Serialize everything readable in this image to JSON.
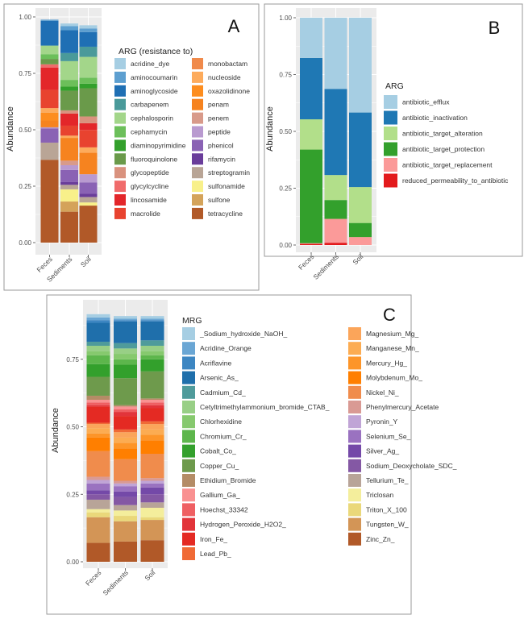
{
  "chart_data": [
    {
      "panel": "A",
      "type": "bar",
      "stacked": true,
      "ylabel": "Abundance",
      "ylim": [
        0,
        1
      ],
      "yticks": [
        "0.00",
        "0.25",
        "0.50",
        "0.75",
        "1.00"
      ],
      "categories": [
        "Feces",
        "Sediments",
        "Soil"
      ],
      "legend_title": "ARG (resistance to)",
      "legend_position": "right",
      "grid": true,
      "series": [
        {
          "name": "acridine_dye",
          "color": "#a6cee3",
          "values": [
            0,
            0.012,
            0.014
          ]
        },
        {
          "name": "aminocoumarin",
          "color": "#5d9fd0",
          "values": [
            0.005,
            0.018,
            0.016
          ]
        },
        {
          "name": "aminoglycoside",
          "color": "#1f6fb4",
          "values": [
            0.11,
            0.101,
            0.065
          ]
        },
        {
          "name": "carbapenem",
          "color": "#4a9a9a",
          "values": [
            0,
            0.036,
            0.045
          ]
        },
        {
          "name": "cephalosporin",
          "color": "#a3d68a",
          "values": [
            0.038,
            0.083,
            0.092
          ]
        },
        {
          "name": "cephamycin",
          "color": "#6cbf5a",
          "values": [
            0.021,
            0.03,
            0.027
          ]
        },
        {
          "name": "diaminopyrimidine",
          "color": "#33a02c",
          "values": [
            0,
            0.018,
            0.02
          ]
        },
        {
          "name": "fluoroquinolone",
          "color": "#6a9a4a",
          "values": [
            0.024,
            0.087,
            0.125
          ]
        },
        {
          "name": "glycopeptide",
          "color": "#d9927e",
          "values": [
            0,
            0.014,
            0.03
          ]
        },
        {
          "name": "glycylcycline",
          "color": "#f06b6b",
          "values": [
            0.014,
            0,
            0
          ]
        },
        {
          "name": "lincosamide",
          "color": "#e3262a",
          "values": [
            0.099,
            0.054,
            0.03
          ]
        },
        {
          "name": "macrolide",
          "color": "#e8432f",
          "values": [
            0.081,
            0.044,
            0.077
          ]
        },
        {
          "name": "monobactam",
          "color": "#f08a4b",
          "values": [
            0,
            0,
            0
          ]
        },
        {
          "name": "nucleoside",
          "color": "#fdab5c",
          "values": [
            0.02,
            0.01,
            0.024
          ]
        },
        {
          "name": "oxazolidinone",
          "color": "#fd8d1e",
          "values": [
            0.035,
            0,
            0
          ]
        },
        {
          "name": "penam",
          "color": "#f6831f",
          "values": [
            0.03,
            0.101,
            0.095
          ]
        },
        {
          "name": "penem",
          "color": "#d89a8a",
          "values": [
            0,
            0.02,
            0
          ]
        },
        {
          "name": "peptide",
          "color": "#b99ad0",
          "values": [
            0.005,
            0.021,
            0.036
          ]
        },
        {
          "name": "phenicol",
          "color": "#8a62b4",
          "values": [
            0.063,
            0.054,
            0.051
          ]
        },
        {
          "name": "rifamycin",
          "color": "#6a3d9a",
          "values": [
            0,
            0.012,
            0.014
          ]
        },
        {
          "name": "streptogramin",
          "color": "#b9a596",
          "values": [
            0.076,
            0.02,
            0.024
          ]
        },
        {
          "name": "sulfonamide",
          "color": "#f8f08a",
          "values": [
            0,
            0.054,
            0.014
          ]
        },
        {
          "name": "sulfone",
          "color": "#d4a35a",
          "values": [
            0,
            0.045,
            0
          ]
        },
        {
          "name": "tetracycline",
          "color": "#b15928",
          "values": [
            0.367,
            0.137,
            0.164
          ]
        }
      ]
    },
    {
      "panel": "B",
      "type": "bar",
      "stacked": true,
      "ylabel": "Abundance",
      "ylim": [
        0,
        1
      ],
      "yticks": [
        "0.00",
        "0.25",
        "0.50",
        "0.75",
        "1.00"
      ],
      "categories": [
        "Feces",
        "Sediments",
        "Soil"
      ],
      "legend_title": "ARG",
      "legend_position": "right",
      "grid": true,
      "series": [
        {
          "name": "antibiotic_efflux",
          "color": "#a6cee3",
          "values": [
            0.177,
            0.313,
            0.417
          ]
        },
        {
          "name": "antibiotic_inactivation",
          "color": "#1f78b4",
          "values": [
            0.27,
            0.379,
            0.328
          ]
        },
        {
          "name": "antibiotic_target_alteration",
          "color": "#b2df8a",
          "values": [
            0.133,
            0.11,
            0.158
          ]
        },
        {
          "name": "antibiotic_target_protection",
          "color": "#33a02c",
          "values": [
            0.412,
            0.083,
            0.062
          ]
        },
        {
          "name": "antibiotic_target_replacement",
          "color": "#fb9a99",
          "values": [
            0.003,
            0.105,
            0.035
          ]
        },
        {
          "name": "reduced_permeability_to_antibiotic",
          "color": "#e31a1c",
          "values": [
            0.005,
            0.01,
            0
          ]
        }
      ]
    },
    {
      "panel": "C",
      "type": "bar",
      "stacked": true,
      "ylabel": "Abundance",
      "ylim": [
        0,
        1
      ],
      "yticks": [
        "0.00",
        "0.25",
        "0.50",
        "0.75"
      ],
      "categories": [
        "Feces",
        "Sediments",
        "Soil"
      ],
      "legend_title": "MRG",
      "legend_position": "right",
      "grid": true,
      "series": [
        {
          "name": "_Sodium_hydroxide_NaOH_",
          "color": "#a6cee3",
          "values": [
            0.012,
            0.01,
            0.01
          ]
        },
        {
          "name": "Acridine_Orange",
          "color": "#6aa6d4",
          "values": [
            0.01,
            0.005,
            0.005
          ]
        },
        {
          "name": "Acriflavine",
          "color": "#3d86c2",
          "values": [
            0.01,
            0.005,
            0.005
          ]
        },
        {
          "name": "Arsenic_As_",
          "color": "#1f6fab",
          "values": [
            0.07,
            0.08,
            0.07
          ]
        },
        {
          "name": "Cadmium_Cd_",
          "color": "#4f9b9b",
          "values": [
            0.015,
            0.02,
            0.02
          ]
        },
        {
          "name": "Cetyltrimethylammonium_bromide_CTAB_",
          "color": "#98cf86",
          "values": [
            0.02,
            0.02,
            0.02
          ]
        },
        {
          "name": "Chlorhexidine",
          "color": "#86c96e",
          "values": [
            0.015,
            0.02,
            0.015
          ]
        },
        {
          "name": "Chromium_Cr_",
          "color": "#5db64c",
          "values": [
            0.033,
            0.02,
            0.015
          ]
        },
        {
          "name": "Cobalt_Co_",
          "color": "#33a02c",
          "values": [
            0.047,
            0.05,
            0.045
          ]
        },
        {
          "name": "Copper_Cu_",
          "color": "#6e9a4c",
          "values": [
            0.07,
            0.1,
            0.1
          ]
        },
        {
          "name": "Ethidium_Bromide",
          "color": "#b48c66",
          "values": [
            0.015,
            0.005,
            0.005
          ]
        },
        {
          "name": "Gallium_Ga_",
          "color": "#f99191",
          "values": [
            0.01,
            0.01,
            0.01
          ]
        },
        {
          "name": "Hoechst_33342",
          "color": "#ef5f62",
          "values": [
            0.01,
            0.01,
            0.01
          ]
        },
        {
          "name": "Hydrogen_Peroxide_H2O2_",
          "color": "#e2343a",
          "values": [
            0.005,
            0.015,
            0.01
          ]
        },
        {
          "name": "Iron_Fe_",
          "color": "#e42a23",
          "values": [
            0.06,
            0.05,
            0.05
          ]
        },
        {
          "name": "Lead_Pb_",
          "color": "#f06a36",
          "values": [
            0.005,
            0.01,
            0.01
          ]
        },
        {
          "name": "Magnesium_Mg_",
          "color": "#fba55a",
          "values": [
            0.015,
            0.02,
            0.02
          ]
        },
        {
          "name": "Manganese_Mn_",
          "color": "#fcac52",
          "values": [
            0.02,
            0.02,
            0.02
          ]
        },
        {
          "name": "Mercury_Hg_",
          "color": "#fd9529",
          "values": [
            0.015,
            0.02,
            0.02
          ]
        },
        {
          "name": "Molybdenum_Mo_",
          "color": "#ff7f00",
          "values": [
            0.05,
            0.04,
            0.05
          ]
        },
        {
          "name": "Nickel_Ni_",
          "color": "#f08c4c",
          "values": [
            0.095,
            0.08,
            0.09
          ]
        },
        {
          "name": "Phenylmercury_Acetate",
          "color": "#d99a94",
          "values": [
            0.012,
            0.01,
            0.01
          ]
        },
        {
          "name": "Pyronin_Y",
          "color": "#c0a4d6",
          "values": [
            0.013,
            0.01,
            0.01
          ]
        },
        {
          "name": "Selenium_Se_",
          "color": "#9a72c0",
          "values": [
            0.025,
            0.02,
            0.015
          ]
        },
        {
          "name": "Silver_Ag_",
          "color": "#7449a8",
          "values": [
            0.015,
            0.02,
            0.025
          ]
        },
        {
          "name": "Sodium_Deoxycholate_SDC_",
          "color": "#8458a4",
          "values": [
            0.02,
            0.03,
            0.03
          ]
        },
        {
          "name": "Tellurium_Te_",
          "color": "#b8a498",
          "values": [
            0.035,
            0.02,
            0.02
          ]
        },
        {
          "name": "Triclosan",
          "color": "#f4ee9c",
          "values": [
            0.012,
            0.02,
            0.035
          ]
        },
        {
          "name": "Triton_X_100",
          "color": "#ead87a",
          "values": [
            0.018,
            0.02,
            0.01
          ]
        },
        {
          "name": "Tungsten_W_",
          "color": "#d39556",
          "values": [
            0.095,
            0.075,
            0.075
          ]
        },
        {
          "name": "Zinc_Zn_",
          "color": "#b15928",
          "values": [
            0.07,
            0.075,
            0.08
          ]
        }
      ]
    }
  ]
}
